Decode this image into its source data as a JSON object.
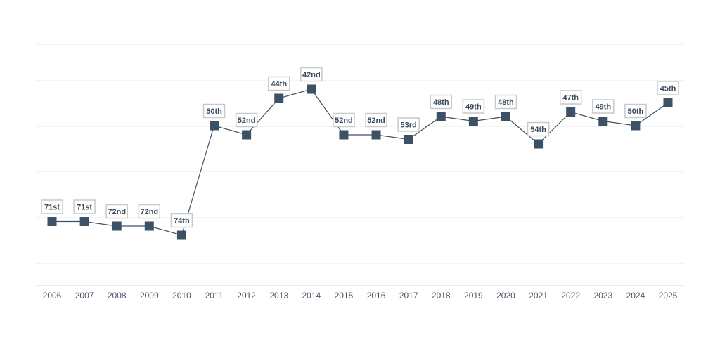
{
  "colors": {
    "marker": "#3d5166",
    "line": "#3d5166",
    "grid": "#e6e9ee",
    "label_border": "#c9c9c9",
    "label_text": "#3a4a5c",
    "tick_text": "#4a5566"
  },
  "chart_data": {
    "type": "line",
    "title": "",
    "xlabel": "",
    "ylabel": "",
    "y_axis": "rank (inverted, lower number is higher on chart)",
    "ylim": [
      80,
      38
    ],
    "grid": true,
    "x": [
      "2006",
      "2007",
      "2008",
      "2009",
      "2010",
      "2011",
      "2012",
      "2013",
      "2014",
      "2015",
      "2016",
      "2017",
      "2018",
      "2019",
      "2020",
      "2021",
      "2022",
      "2023",
      "2024",
      "2025"
    ],
    "series": [
      {
        "values": [
          71,
          71,
          72,
          72,
          74,
          50,
          52,
          44,
          42,
          52,
          52,
          53,
          48,
          49,
          48,
          54,
          47,
          49,
          50,
          45
        ],
        "labels": [
          "71st",
          "71st",
          "72nd",
          "72nd",
          "74th",
          "50th",
          "52nd",
          "44th",
          "42nd",
          "52nd",
          "52nd",
          "53rd",
          "48th",
          "49th",
          "48th",
          "54th",
          "47th",
          "49th",
          "50th",
          "45th"
        ]
      }
    ]
  }
}
